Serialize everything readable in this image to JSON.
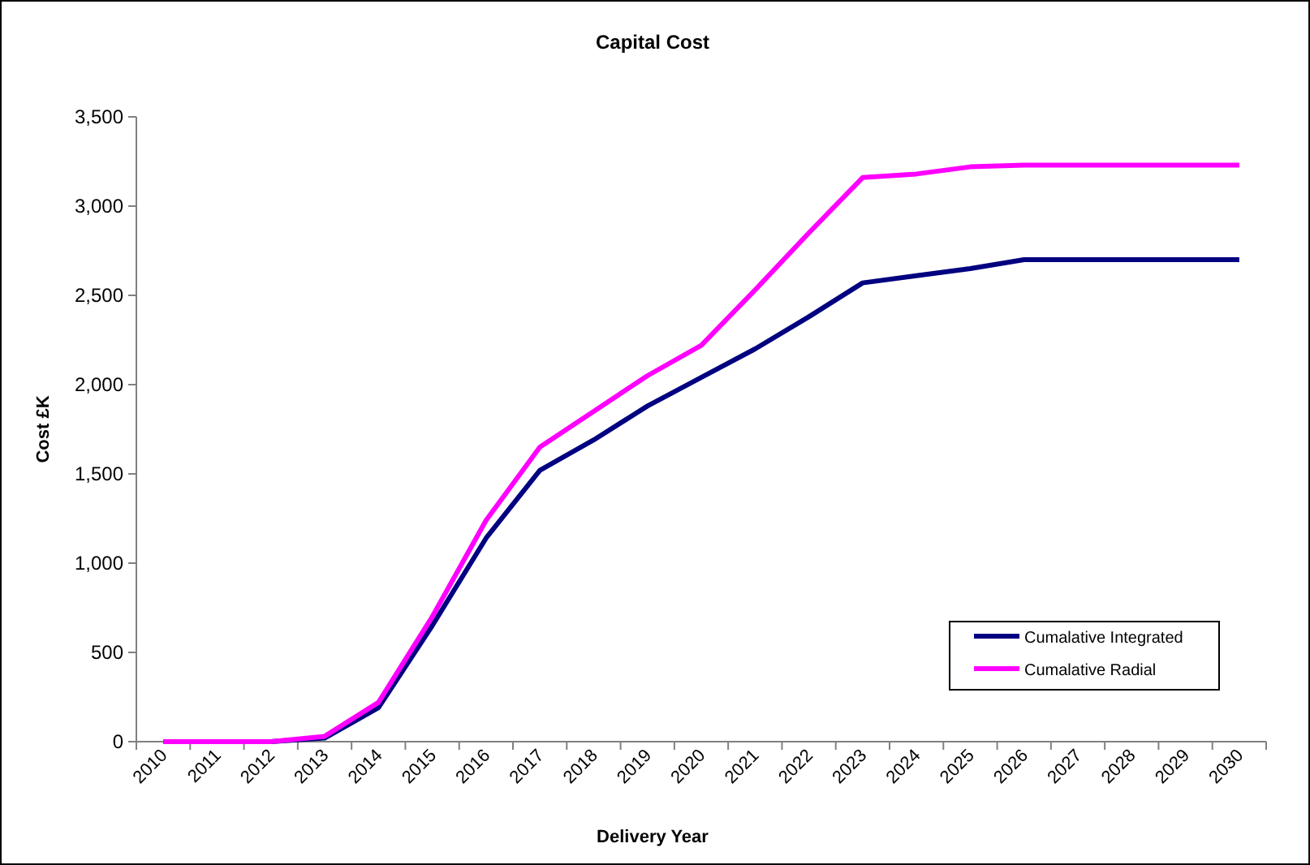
{
  "chart_data": {
    "type": "line",
    "title": "Capital Cost",
    "xlabel": "Delivery Year",
    "ylabel": "Cost £K",
    "categories": [
      "2010",
      "2011",
      "2012",
      "2013",
      "2014",
      "2015",
      "2016",
      "2017",
      "2018",
      "2019",
      "2020",
      "2021",
      "2022",
      "2023",
      "2024",
      "2025",
      "2026",
      "2027",
      "2028",
      "2029",
      "2030"
    ],
    "series": [
      {
        "name": "Cumalative Integrated",
        "color": "#000080",
        "values": [
          0,
          0,
          0,
          20,
          190,
          650,
          1140,
          1520,
          1690,
          1880,
          2040,
          2200,
          2380,
          2570,
          2610,
          2650,
          2700,
          2700,
          2700,
          2700,
          2700
        ]
      },
      {
        "name": "Cumalative Radial",
        "color": "#ff00ff",
        "values": [
          0,
          0,
          0,
          30,
          220,
          700,
          1240,
          1650,
          1850,
          2050,
          2220,
          2530,
          2850,
          3160,
          3180,
          3220,
          3230,
          3230,
          3230,
          3230,
          3230
        ]
      }
    ],
    "ylim": [
      0,
      3500
    ],
    "yticks": [
      {
        "value": 0,
        "label": "0"
      },
      {
        "value": 500,
        "label": "500"
      },
      {
        "value": 1000,
        "label": "1,000"
      },
      {
        "value": 1500,
        "label": "1,500"
      },
      {
        "value": 2000,
        "label": "2,000"
      },
      {
        "value": 2500,
        "label": "2,500"
      },
      {
        "value": 3000,
        "label": "3,000"
      },
      {
        "value": 3500,
        "label": "3,500"
      }
    ],
    "grid": false,
    "legend": "bottom right",
    "marker": "none",
    "line_style": "solid"
  }
}
